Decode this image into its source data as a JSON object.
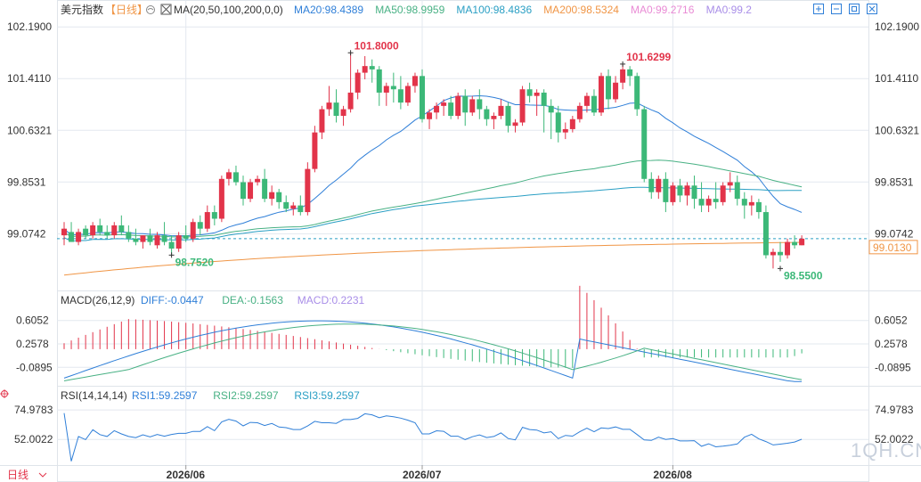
{
  "header": {
    "title": "美元指数",
    "period_tag": "【日线】",
    "ma_label": "MA(20,50,100,200,0,0)",
    "ma_legend": [
      {
        "text": "MA20:98.4389",
        "color": "#2f7fd8"
      },
      {
        "text": "MA50:98.9959",
        "color": "#48b184"
      },
      {
        "text": "MA100:98.4836",
        "color": "#2a9fc4"
      },
      {
        "text": "MA200:98.5324",
        "color": "#f09545"
      },
      {
        "text": "MA0:99.2716",
        "color": "#e98bd5"
      },
      {
        "text": "MA0:99.2",
        "color": "#a98ee8"
      }
    ],
    "toolbar_icons": [
      "add-icon",
      "minimize-icon",
      "maximize-icon",
      "close-icon"
    ]
  },
  "macd_legend": {
    "label": "MACD(26,12,9)",
    "items": [
      {
        "text": "DIFF:-0.0447",
        "color": "#2f7fd8"
      },
      {
        "text": "DEA:-0.1563",
        "color": "#48b184"
      },
      {
        "text": "MACD:0.2231",
        "color": "#a98ee8"
      }
    ]
  },
  "rsi_legend": {
    "label": "RSI(14,14,14)",
    "items": [
      {
        "text": "RSI1:59.2597",
        "color": "#2f7fd8"
      },
      {
        "text": "RSI2:59.2597",
        "color": "#48b184"
      },
      {
        "text": "RSI3:59.2597",
        "color": "#2a9fc4"
      }
    ]
  },
  "footer": {
    "period": "日线",
    "x_labels": [
      "2026/06",
      "2026/07",
      "2026/08"
    ]
  },
  "watermark": "1QH.CN",
  "colors": {
    "up": "#e2344a",
    "down": "#3cb878",
    "last_price": "#f09545",
    "grid": "#e3e8ef",
    "axis_text": "#333333"
  },
  "chart_data": [
    {
      "type": "candlestick",
      "yticks": [
        "102.1900",
        "101.4110",
        "100.6321",
        "99.8531",
        "99.0742"
      ],
      "ylim": [
        98.3,
        102.3
      ],
      "last_price_label": "99.0130",
      "dashed_line_value": 99.0,
      "annotations": [
        {
          "text": "101.8000",
          "color": "#e2344a",
          "candle": 40,
          "value": 101.8
        },
        {
          "text": "101.6299",
          "color": "#e2344a",
          "candle": 78,
          "value": 101.63
        },
        {
          "text": "98.7520",
          "color": "#3cb878",
          "candle": 15,
          "value": 98.752
        },
        {
          "text": "98.5500",
          "color": "#3cb878",
          "candle": 100,
          "value": 98.55
        }
      ],
      "candles": [
        [
          99.05,
          99.25,
          99.15,
          98.9
        ],
        [
          99.1,
          99.25,
          98.95,
          99.05
        ],
        [
          98.95,
          99.15,
          99.1,
          98.9
        ],
        [
          99.15,
          99.2,
          99.05,
          99.0
        ],
        [
          99.05,
          99.25,
          99.2,
          99.0
        ],
        [
          99.2,
          99.3,
          99.1,
          99.05
        ],
        [
          99.1,
          99.2,
          99.05,
          99.0
        ],
        [
          99.05,
          99.25,
          99.2,
          99.0
        ],
        [
          99.2,
          99.35,
          99.1,
          99.05
        ],
        [
          99.1,
          99.2,
          99.0,
          98.95
        ],
        [
          99.0,
          99.15,
          98.95,
          98.9
        ],
        [
          98.95,
          99.05,
          99.05,
          98.85
        ],
        [
          99.05,
          99.15,
          98.95,
          98.9
        ],
        [
          98.9,
          99.1,
          99.05,
          98.85
        ],
        [
          99.05,
          99.25,
          98.95,
          98.9
        ],
        [
          98.95,
          99.05,
          98.85,
          98.75
        ],
        [
          98.85,
          99.1,
          99.05,
          98.8
        ],
        [
          99.05,
          99.2,
          99.0,
          98.95
        ],
        [
          99.0,
          99.3,
          99.25,
          98.95
        ],
        [
          99.25,
          99.35,
          99.15,
          99.05
        ],
        [
          99.15,
          99.5,
          99.4,
          99.1
        ],
        [
          99.4,
          99.5,
          99.3,
          99.2
        ],
        [
          99.3,
          99.95,
          99.9,
          99.25
        ],
        [
          99.9,
          100.05,
          100.0,
          99.8
        ],
        [
          100.0,
          100.1,
          99.85,
          99.8
        ],
        [
          99.85,
          99.95,
          99.6,
          99.5
        ],
        [
          99.6,
          99.9,
          99.85,
          99.55
        ],
        [
          99.85,
          99.95,
          99.9,
          99.8
        ],
        [
          99.9,
          100.05,
          99.6,
          99.55
        ],
        [
          99.6,
          99.8,
          99.7,
          99.5
        ],
        [
          99.7,
          99.75,
          99.55,
          99.45
        ],
        [
          99.55,
          99.65,
          99.45,
          99.4
        ],
        [
          99.45,
          99.55,
          99.5,
          99.35
        ],
        [
          99.5,
          99.65,
          99.4,
          99.35
        ],
        [
          99.4,
          100.15,
          100.05,
          99.35
        ],
        [
          100.05,
          100.7,
          100.6,
          100.0
        ],
        [
          100.6,
          101.0,
          100.95,
          100.5
        ],
        [
          100.95,
          101.3,
          101.05,
          100.85
        ],
        [
          101.05,
          101.25,
          100.85,
          100.75
        ],
        [
          100.85,
          101.0,
          100.95,
          100.7
        ],
        [
          100.95,
          101.8,
          101.2,
          100.9
        ],
        [
          101.2,
          101.55,
          101.5,
          101.1
        ],
        [
          101.5,
          101.75,
          101.6,
          101.4
        ],
        [
          101.6,
          101.7,
          101.55,
          101.35
        ],
        [
          101.55,
          101.6,
          101.2,
          101.0
        ],
        [
          101.2,
          101.35,
          101.3,
          101.0
        ],
        [
          101.3,
          101.5,
          101.25,
          101.05
        ],
        [
          101.25,
          101.45,
          101.05,
          100.95
        ],
        [
          101.05,
          101.35,
          101.3,
          101.0
        ],
        [
          101.3,
          101.5,
          101.45,
          101.2
        ],
        [
          101.45,
          101.55,
          100.8,
          100.75
        ],
        [
          100.8,
          100.95,
          100.9,
          100.65
        ],
        [
          100.9,
          101.05,
          101.0,
          100.8
        ],
        [
          101.0,
          101.1,
          101.05,
          100.85
        ],
        [
          101.05,
          101.15,
          100.85,
          100.8
        ],
        [
          100.85,
          101.2,
          101.15,
          100.8
        ],
        [
          101.15,
          101.25,
          100.9,
          100.7
        ],
        [
          100.9,
          101.15,
          101.1,
          100.85
        ],
        [
          101.1,
          101.25,
          100.95,
          100.8
        ],
        [
          100.95,
          101.0,
          100.8,
          100.7
        ],
        [
          100.8,
          100.9,
          100.85,
          100.65
        ],
        [
          100.85,
          101.1,
          101.0,
          100.8
        ],
        [
          101.0,
          101.05,
          100.7,
          100.6
        ],
        [
          100.7,
          100.8,
          100.75,
          100.6
        ],
        [
          100.75,
          101.3,
          101.25,
          100.7
        ],
        [
          101.25,
          101.35,
          101.15,
          101.05
        ],
        [
          101.15,
          101.25,
          101.2,
          100.85
        ],
        [
          101.2,
          101.25,
          101.0,
          100.6
        ],
        [
          101.0,
          101.1,
          100.9,
          100.5
        ],
        [
          100.9,
          101.0,
          100.6,
          100.45
        ],
        [
          100.6,
          100.75,
          100.65,
          100.5
        ],
        [
          100.65,
          100.85,
          100.8,
          100.6
        ],
        [
          100.8,
          101.05,
          101.0,
          100.75
        ],
        [
          101.0,
          101.2,
          101.15,
          100.9
        ],
        [
          101.15,
          101.25,
          100.9,
          100.85
        ],
        [
          100.9,
          101.5,
          101.45,
          100.85
        ],
        [
          101.45,
          101.55,
          101.1,
          100.95
        ],
        [
          101.1,
          101.45,
          101.35,
          101.05
        ],
        [
          101.35,
          101.63,
          101.55,
          101.25
        ],
        [
          101.55,
          101.6,
          101.45,
          101.3
        ],
        [
          101.45,
          101.5,
          100.95,
          100.85
        ],
        [
          100.95,
          101.0,
          99.9,
          99.85
        ],
        [
          99.9,
          100.0,
          99.7,
          99.6
        ],
        [
          99.7,
          99.95,
          99.9,
          99.6
        ],
        [
          99.9,
          100.0,
          99.55,
          99.4
        ],
        [
          99.55,
          99.85,
          99.8,
          99.5
        ],
        [
          99.8,
          99.9,
          99.65,
          99.55
        ],
        [
          99.65,
          99.85,
          99.8,
          99.5
        ],
        [
          99.8,
          99.95,
          99.6,
          99.45
        ],
        [
          99.6,
          99.85,
          99.5,
          99.4
        ],
        [
          99.5,
          99.65,
          99.6,
          99.4
        ],
        [
          99.6,
          99.85,
          99.55,
          99.45
        ],
        [
          99.55,
          99.85,
          99.8,
          99.5
        ],
        [
          99.8,
          100.0,
          99.85,
          99.7
        ],
        [
          99.85,
          99.95,
          99.6,
          99.5
        ],
        [
          99.6,
          99.7,
          99.5,
          99.3
        ],
        [
          99.5,
          99.65,
          99.55,
          99.35
        ],
        [
          99.55,
          99.6,
          99.4,
          99.3
        ],
        [
          99.4,
          99.5,
          98.75,
          98.7
        ],
        [
          98.75,
          98.85,
          98.8,
          98.55
        ],
        [
          98.8,
          98.95,
          98.75,
          98.65
        ],
        [
          98.75,
          99.0,
          98.95,
          98.7
        ],
        [
          98.95,
          99.05,
          98.9,
          98.85
        ],
        [
          98.9,
          99.05,
          99.0,
          98.9
        ]
      ]
    },
    {
      "type": "line",
      "name": "MACD(26,12,9)",
      "yticks": [
        "0.6052",
        "0.2578",
        "-0.0895"
      ],
      "ylim": [
        -0.35,
        0.8
      ]
    },
    {
      "type": "line",
      "name": "RSI(14,14,14)",
      "yticks": [
        "74.9783",
        "52.0022"
      ],
      "ylim": [
        32,
        82
      ]
    }
  ]
}
